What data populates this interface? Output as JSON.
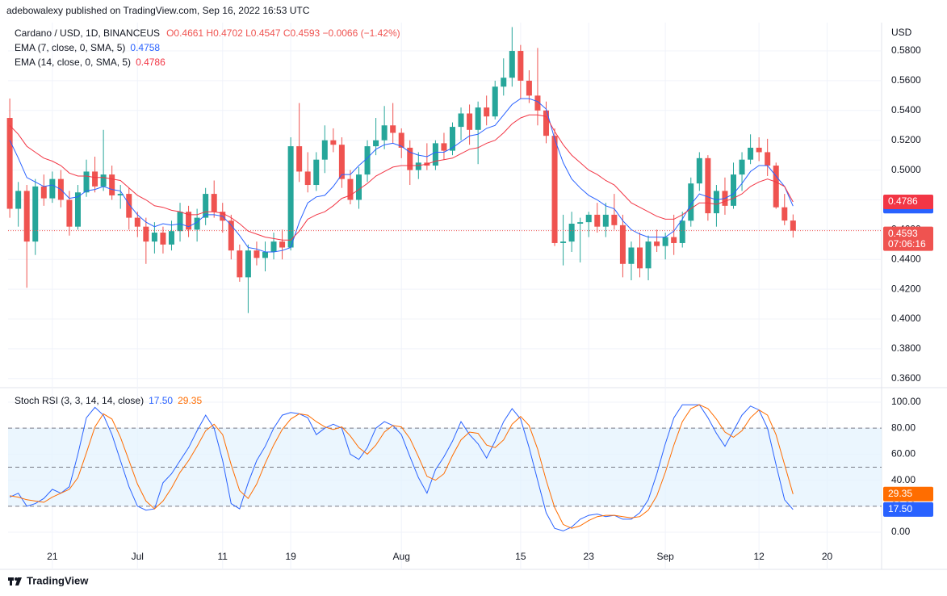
{
  "publisher": "adebowalexy published on TradingView.com, Sep 16, 2022 16:53 UTC",
  "brand": "TradingView",
  "chart_data": [
    {
      "type": "candlestick",
      "title": "Cardano / USD, 1D, BINANCEUS",
      "ohlc_label": "O0.4661 H0.4702 L0.4547 C0.4593 −0.0066 (−1.42%)",
      "y_unit": "USD",
      "up_color": "#26a69a",
      "down_color": "#ef5350",
      "ylim": [
        0.355,
        0.599
      ],
      "yticks": [
        {
          "value": 0.58,
          "label": "0.5800"
        },
        {
          "value": 0.56,
          "label": "0.5600"
        },
        {
          "value": 0.54,
          "label": "0.5400"
        },
        {
          "value": 0.52,
          "label": "0.5200"
        },
        {
          "value": 0.5,
          "label": "0.5000"
        },
        {
          "value": 0.48,
          "label": "0.4800"
        },
        {
          "value": 0.46,
          "label": "0.4600"
        },
        {
          "value": 0.44,
          "label": "0.4400"
        },
        {
          "value": 0.42,
          "label": "0.4200"
        },
        {
          "value": 0.4,
          "label": "0.4000"
        },
        {
          "value": 0.38,
          "label": "0.3800"
        },
        {
          "value": 0.36,
          "label": "0.3600"
        }
      ],
      "last_price_label": "0.4593",
      "countdown": "07:06:16",
      "candles": [
        [
          0.535,
          0.548,
          0.468,
          0.474
        ],
        [
          0.474,
          0.492,
          0.462,
          0.486
        ],
        [
          0.486,
          0.49,
          0.421,
          0.452
        ],
        [
          0.452,
          0.494,
          0.443,
          0.489
        ],
        [
          0.489,
          0.497,
          0.476,
          0.481
        ],
        [
          0.481,
          0.499,
          0.478,
          0.494
        ],
        [
          0.494,
          0.5,
          0.475,
          0.48
        ],
        [
          0.48,
          0.486,
          0.456,
          0.462
        ],
        [
          0.462,
          0.49,
          0.46,
          0.485
        ],
        [
          0.485,
          0.507,
          0.482,
          0.499
        ],
        [
          0.499,
          0.509,
          0.485,
          0.489
        ],
        [
          0.489,
          0.527,
          0.486,
          0.497
        ],
        [
          0.497,
          0.503,
          0.48,
          0.483
        ],
        [
          0.483,
          0.49,
          0.474,
          0.484
        ],
        [
          0.484,
          0.488,
          0.46,
          0.468
        ],
        [
          0.468,
          0.472,
          0.455,
          0.462
        ],
        [
          0.462,
          0.468,
          0.437,
          0.452
        ],
        [
          0.452,
          0.465,
          0.444,
          0.458
        ],
        [
          0.458,
          0.462,
          0.444,
          0.45
        ],
        [
          0.45,
          0.466,
          0.446,
          0.459
        ],
        [
          0.459,
          0.478,
          0.452,
          0.472
        ],
        [
          0.472,
          0.476,
          0.455,
          0.46
        ],
        [
          0.46,
          0.474,
          0.452,
          0.468
        ],
        [
          0.468,
          0.488,
          0.463,
          0.484
        ],
        [
          0.484,
          0.493,
          0.468,
          0.472
        ],
        [
          0.472,
          0.478,
          0.458,
          0.466
        ],
        [
          0.466,
          0.47,
          0.44,
          0.446
        ],
        [
          0.446,
          0.45,
          0.425,
          0.428
        ],
        [
          0.428,
          0.45,
          0.404,
          0.446
        ],
        [
          0.446,
          0.452,
          0.436,
          0.441
        ],
        [
          0.441,
          0.452,
          0.432,
          0.445
        ],
        [
          0.445,
          0.458,
          0.44,
          0.452
        ],
        [
          0.452,
          0.46,
          0.44,
          0.448
        ],
        [
          0.448,
          0.522,
          0.446,
          0.516
        ],
        [
          0.516,
          0.545,
          0.492,
          0.499
        ],
        [
          0.499,
          0.512,
          0.485,
          0.49
        ],
        [
          0.49,
          0.512,
          0.486,
          0.507
        ],
        [
          0.507,
          0.53,
          0.498,
          0.52
        ],
        [
          0.52,
          0.528,
          0.512,
          0.517
        ],
        [
          0.517,
          0.522,
          0.488,
          0.494
        ],
        [
          0.494,
          0.5,
          0.477,
          0.48
        ],
        [
          0.48,
          0.502,
          0.474,
          0.497
        ],
        [
          0.497,
          0.52,
          0.492,
          0.516
        ],
        [
          0.516,
          0.535,
          0.51,
          0.52
        ],
        [
          0.52,
          0.543,
          0.514,
          0.53
        ],
        [
          0.53,
          0.545,
          0.518,
          0.525
        ],
        [
          0.525,
          0.528,
          0.508,
          0.515
        ],
        [
          0.515,
          0.52,
          0.49,
          0.5
        ],
        [
          0.5,
          0.512,
          0.494,
          0.505
        ],
        [
          0.505,
          0.518,
          0.5,
          0.503
        ],
        [
          0.503,
          0.52,
          0.5,
          0.518
        ],
        [
          0.518,
          0.525,
          0.507,
          0.513
        ],
        [
          0.513,
          0.532,
          0.51,
          0.529
        ],
        [
          0.529,
          0.542,
          0.52,
          0.538
        ],
        [
          0.538,
          0.544,
          0.517,
          0.527
        ],
        [
          0.527,
          0.546,
          0.504,
          0.542
        ],
        [
          0.542,
          0.55,
          0.53,
          0.536
        ],
        [
          0.536,
          0.56,
          0.534,
          0.556
        ],
        [
          0.556,
          0.575,
          0.55,
          0.562
        ],
        [
          0.562,
          0.596,
          0.556,
          0.58
        ],
        [
          0.58,
          0.584,
          0.548,
          0.56
        ],
        [
          0.56,
          0.567,
          0.545,
          0.55
        ],
        [
          0.55,
          0.582,
          0.53,
          0.54
        ],
        [
          0.54,
          0.546,
          0.518,
          0.523
        ],
        [
          0.523,
          0.528,
          0.449,
          0.451
        ],
        [
          0.451,
          0.47,
          0.436,
          0.452
        ],
        [
          0.452,
          0.472,
          0.445,
          0.464
        ],
        [
          0.464,
          0.468,
          0.438,
          0.465
        ],
        [
          0.465,
          0.472,
          0.455,
          0.47
        ],
        [
          0.47,
          0.478,
          0.458,
          0.462
        ],
        [
          0.462,
          0.478,
          0.455,
          0.47
        ],
        [
          0.47,
          0.484,
          0.46,
          0.463
        ],
        [
          0.463,
          0.47,
          0.428,
          0.437
        ],
        [
          0.437,
          0.452,
          0.426,
          0.448
        ],
        [
          0.448,
          0.458,
          0.428,
          0.434
        ],
        [
          0.434,
          0.456,
          0.426,
          0.452
        ],
        [
          0.452,
          0.46,
          0.445,
          0.449
        ],
        [
          0.449,
          0.458,
          0.44,
          0.455
        ],
        [
          0.455,
          0.47,
          0.443,
          0.451
        ],
        [
          0.451,
          0.472,
          0.448,
          0.466
        ],
        [
          0.466,
          0.495,
          0.462,
          0.491
        ],
        [
          0.491,
          0.512,
          0.486,
          0.508
        ],
        [
          0.508,
          0.51,
          0.466,
          0.471
        ],
        [
          0.471,
          0.49,
          0.462,
          0.486
        ],
        [
          0.486,
          0.495,
          0.47,
          0.476
        ],
        [
          0.476,
          0.505,
          0.474,
          0.497
        ],
        [
          0.497,
          0.512,
          0.486,
          0.507
        ],
        [
          0.507,
          0.524,
          0.504,
          0.515
        ],
        [
          0.515,
          0.522,
          0.506,
          0.512
        ],
        [
          0.512,
          0.521,
          0.496,
          0.503
        ],
        [
          0.503,
          0.505,
          0.474,
          0.475
        ],
        [
          0.475,
          0.484,
          0.463,
          0.4661
        ],
        [
          0.4661,
          0.4702,
          0.4547,
          0.4593
        ]
      ],
      "series": [
        {
          "name": "EMA (7, close, 0, SMA, 5)",
          "color": "#2962ff",
          "last_label": "0.4758",
          "values": [
            0.52,
            0.508,
            0.495,
            0.492,
            0.489,
            0.49,
            0.487,
            0.481,
            0.482,
            0.486,
            0.487,
            0.489,
            0.487,
            0.486,
            0.477,
            0.47,
            0.465,
            0.462,
            0.464,
            0.463,
            0.464,
            0.462,
            0.465,
            0.47,
            0.47,
            0.469,
            0.463,
            0.456,
            0.448,
            0.447,
            0.445,
            0.445,
            0.446,
            0.448,
            0.465,
            0.478,
            0.482,
            0.483,
            0.489,
            0.497,
            0.497,
            0.503,
            0.508,
            0.514,
            0.517,
            0.518,
            0.516,
            0.512,
            0.51,
            0.509,
            0.512,
            0.512,
            0.515,
            0.519,
            0.523,
            0.524,
            0.528,
            0.53,
            0.537,
            0.544,
            0.548,
            0.548,
            0.546,
            0.541,
            0.521,
            0.505,
            0.494,
            0.488,
            0.483,
            0.48,
            0.476,
            0.474,
            0.466,
            0.46,
            0.457,
            0.455,
            0.455,
            0.455,
            0.459,
            0.467,
            0.477,
            0.484,
            0.482,
            0.48,
            0.481,
            0.484,
            0.491,
            0.499,
            0.503,
            0.503,
            0.496,
            0.489,
            0.4758
          ]
        },
        {
          "name": "EMA (14, close, 0, SMA, 5)",
          "color": "#f23645",
          "last_label": "0.4786",
          "values": [
            0.53,
            0.524,
            0.516,
            0.512,
            0.508,
            0.506,
            0.503,
            0.498,
            0.496,
            0.496,
            0.495,
            0.495,
            0.494,
            0.493,
            0.488,
            0.483,
            0.48,
            0.476,
            0.475,
            0.473,
            0.472,
            0.47,
            0.47,
            0.472,
            0.472,
            0.471,
            0.468,
            0.464,
            0.459,
            0.457,
            0.455,
            0.454,
            0.453,
            0.453,
            0.459,
            0.467,
            0.47,
            0.472,
            0.476,
            0.481,
            0.483,
            0.487,
            0.491,
            0.496,
            0.499,
            0.502,
            0.503,
            0.503,
            0.503,
            0.504,
            0.506,
            0.507,
            0.508,
            0.511,
            0.514,
            0.515,
            0.518,
            0.52,
            0.525,
            0.531,
            0.535,
            0.537,
            0.537,
            0.536,
            0.526,
            0.517,
            0.51,
            0.505,
            0.5,
            0.497,
            0.493,
            0.49,
            0.484,
            0.478,
            0.475,
            0.472,
            0.469,
            0.467,
            0.467,
            0.47,
            0.474,
            0.478,
            0.478,
            0.477,
            0.479,
            0.481,
            0.484,
            0.489,
            0.492,
            0.494,
            0.492,
            0.489,
            0.4786
          ]
        }
      ]
    },
    {
      "type": "line",
      "title": "Stoch RSI (3, 3, 14, 14, close)",
      "ylim": [
        -9.9,
        109.9
      ],
      "yticks": [
        {
          "value": 100,
          "label": "100.00"
        },
        {
          "value": 80,
          "label": "80.00"
        },
        {
          "value": 60,
          "label": "60.00"
        },
        {
          "value": 40,
          "label": "40.00"
        },
        {
          "value": 20,
          "label": "20.00"
        },
        {
          "value": 0,
          "label": "0.00"
        }
      ],
      "levels": [
        80,
        50,
        20
      ],
      "band_color": "#e3f2fd",
      "xlim": [
        -0.2,
        102.4
      ],
      "xticks": [
        {
          "value": 5,
          "label": "21"
        },
        {
          "value": 15,
          "label": "Jul"
        },
        {
          "value": 25,
          "label": "11"
        },
        {
          "value": 33,
          "label": "19"
        },
        {
          "value": 46,
          "label": "Aug"
        },
        {
          "value": 60,
          "label": "15"
        },
        {
          "value": 68,
          "label": "23"
        },
        {
          "value": 77,
          "label": "Sep"
        },
        {
          "value": 88,
          "label": "12"
        },
        {
          "value": 96,
          "label": "20"
        }
      ],
      "series": [
        {
          "color": "#2962ff",
          "last_label": "17.50",
          "values": [
            27,
            30,
            20,
            22,
            26,
            33,
            30,
            35,
            60,
            88,
            96,
            90,
            75,
            55,
            35,
            20,
            17,
            18,
            38,
            45,
            55,
            65,
            78,
            90,
            80,
            55,
            22,
            18,
            38,
            55,
            66,
            80,
            90,
            92,
            91,
            88,
            75,
            80,
            83,
            80,
            60,
            56,
            65,
            80,
            85,
            82,
            75,
            58,
            42,
            30,
            48,
            58,
            70,
            85,
            75,
            68,
            57,
            70,
            85,
            95,
            87,
            65,
            40,
            15,
            3,
            1,
            4,
            10,
            13,
            14,
            12,
            13,
            10,
            10,
            15,
            25,
            45,
            68,
            88,
            98,
            98,
            98,
            88,
            76,
            66,
            78,
            90,
            97,
            94,
            80,
            52,
            25,
            17.5
          ]
        },
        {
          "color": "#ff6d00",
          "last_label": "29.35",
          "values": [
            28,
            27,
            25,
            24,
            23,
            27,
            30,
            33,
            42,
            61,
            81,
            91,
            87,
            73,
            55,
            37,
            24,
            18,
            24,
            34,
            46,
            55,
            66,
            78,
            83,
            75,
            52,
            32,
            26,
            37,
            53,
            67,
            79,
            87,
            91,
            90,
            85,
            81,
            79,
            81,
            74,
            65,
            60,
            67,
            77,
            82,
            81,
            72,
            58,
            43,
            40,
            45,
            59,
            71,
            77,
            76,
            67,
            65,
            71,
            83,
            89,
            82,
            64,
            40,
            19,
            6,
            3,
            5,
            9,
            12,
            13,
            13,
            12,
            11,
            12,
            17,
            28,
            46,
            67,
            85,
            95,
            98,
            95,
            87,
            77,
            73,
            78,
            88,
            94,
            90,
            75,
            52,
            29.35
          ]
        }
      ]
    }
  ]
}
